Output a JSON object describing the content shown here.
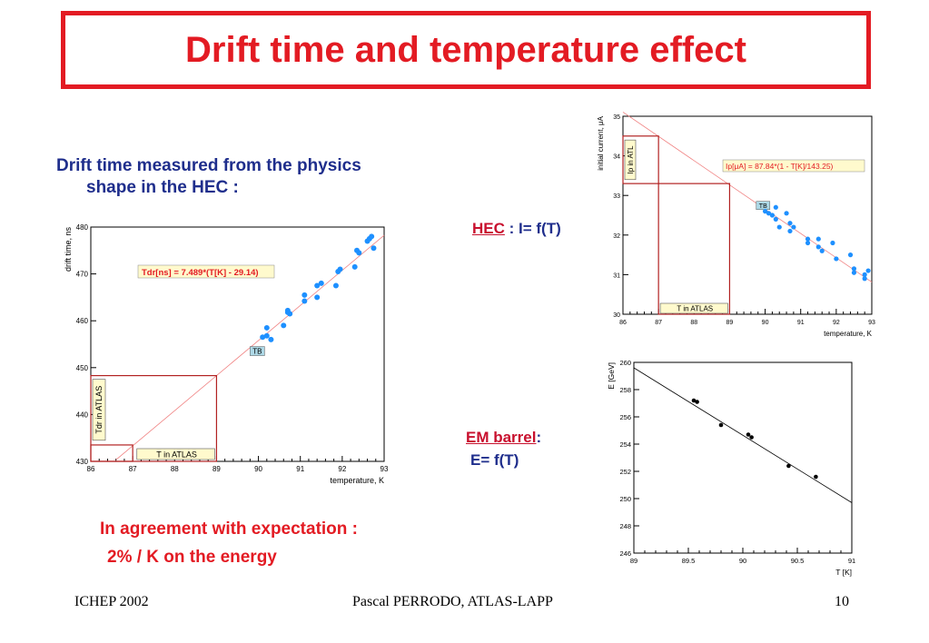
{
  "slide": {
    "title": "Drift time and temperature effect",
    "intro_line1": "Drift time measured from the physics",
    "intro_line2": "shape in the HEC :",
    "hec_key": "HEC",
    "hec_rest": " : I= f(T)",
    "em_key": "EM barrel",
    "em_colon": ":",
    "em_rest": "E= f(T)",
    "agreement_line1": "In agreement with expectation :",
    "agreement_line2": "2% / K on the energy",
    "footer_left": "ICHEP 2002",
    "footer_center": "Pascal PERRODO, ATLAS-LAPP",
    "footer_right": "10"
  },
  "chart_data": [
    {
      "type": "scatter",
      "xlabel": "temperature, K",
      "ylabel": "drift time, ns",
      "xlim": [
        86,
        93
      ],
      "ylim": [
        430,
        480
      ],
      "xticks": [
        86,
        87,
        88,
        89,
        90,
        91,
        92,
        93
      ],
      "yticks": [
        430,
        440,
        450,
        460,
        470,
        480
      ],
      "fit_label": "Tdr[ns] = 7.489*(T[K] - 29.14)",
      "fit": {
        "slope": 7.489,
        "offset": 29.14
      },
      "marker_label": "TB",
      "atlas_t_label": "T in ATLAS",
      "atlas_y_label": "Tdr in ATLAS",
      "atlas_t": 89,
      "atlas_y": 448.3,
      "atlas_t_low": 87,
      "atlas_y_low": 433.5,
      "color": "#1e90ff",
      "x": [
        90.1,
        90.2,
        90.2,
        90.3,
        90.6,
        90.7,
        90.7,
        90.75,
        91.1,
        91.1,
        91.4,
        91.4,
        91.5,
        91.85,
        91.9,
        91.95,
        92.3,
        92.35,
        92.4,
        92.6,
        92.65,
        92.7,
        92.75
      ],
      "y": [
        456.5,
        458.5,
        456.8,
        456.0,
        459.0,
        461.8,
        462.2,
        461.5,
        465.5,
        464.2,
        467.5,
        465.0,
        468.0,
        467.5,
        470.5,
        471.0,
        471.5,
        475.0,
        474.5,
        477.0,
        477.5,
        478.0,
        475.5
      ]
    },
    {
      "type": "scatter",
      "xlabel": "temperature, K",
      "ylabel": "initial current, μA",
      "xlim": [
        86,
        93
      ],
      "ylim": [
        30,
        35
      ],
      "xticks": [
        86,
        87,
        88,
        89,
        90,
        91,
        92,
        93
      ],
      "yticks": [
        30,
        31,
        32,
        33,
        34,
        35
      ],
      "fit_label": "Ip[μA] = 87.84*(1 - T[K]/143.25)",
      "marker_label": "TB",
      "atlas_t_label": "T in ATLAS",
      "atlas_y_label": "Ip in ATL",
      "atlas_t": 89,
      "atlas_y": 33.3,
      "atlas_t_low": 87,
      "atlas_y_high": 34.5,
      "color": "#1e90ff",
      "x": [
        90.0,
        90.1,
        90.2,
        90.3,
        90.3,
        90.4,
        90.6,
        90.7,
        90.7,
        90.8,
        91.2,
        91.2,
        91.5,
        91.5,
        91.6,
        91.9,
        92.0,
        92.4,
        92.5,
        92.5,
        92.8,
        92.8,
        92.9
      ],
      "y": [
        32.6,
        32.55,
        32.5,
        32.7,
        32.4,
        32.2,
        32.55,
        32.3,
        32.1,
        32.2,
        31.9,
        31.8,
        31.9,
        31.7,
        31.6,
        31.8,
        31.4,
        31.5,
        31.15,
        31.05,
        31.0,
        30.9,
        31.1
      ]
    },
    {
      "type": "scatter",
      "xlabel": "T [K]",
      "ylabel": "E [GeV]",
      "xlim": [
        89,
        91
      ],
      "ylim": [
        246,
        260
      ],
      "xticks": [
        89,
        89.5,
        90,
        90.5,
        91
      ],
      "yticks": [
        246,
        248,
        250,
        252,
        254,
        256,
        258,
        260
      ],
      "fit_line": {
        "x": [
          89,
          91
        ],
        "y": [
          259.6,
          249.7
        ]
      },
      "color": "#000000",
      "x": [
        89.55,
        89.58,
        89.8,
        90.05,
        90.08,
        90.42,
        90.67
      ],
      "y": [
        257.2,
        257.1,
        255.4,
        254.7,
        254.5,
        252.4,
        251.6
      ]
    }
  ]
}
